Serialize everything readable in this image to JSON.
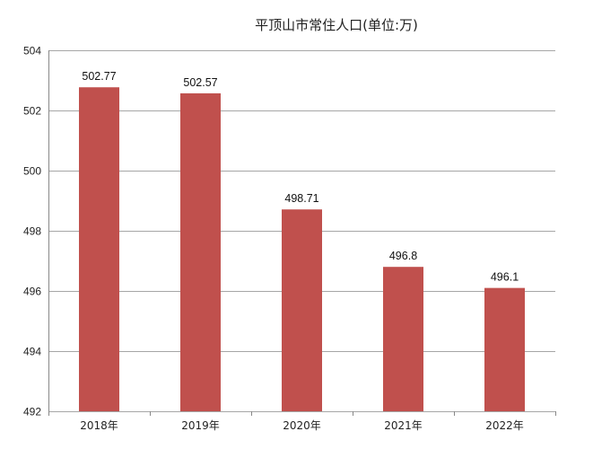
{
  "chart_data": {
    "type": "bar",
    "title": "平顶山市常住人口(单位:万)",
    "categories": [
      "2018年",
      "2019年",
      "2020年",
      "2021年",
      "2022年"
    ],
    "values": [
      502.77,
      502.57,
      498.71,
      496.8,
      496.1
    ],
    "data_labels": [
      "502.77",
      "502.57",
      "498.71",
      "496.8",
      "496.1"
    ],
    "ylim": [
      492,
      504
    ],
    "yticks": [
      492,
      494,
      496,
      498,
      500,
      502,
      504
    ],
    "xlabel": "",
    "ylabel": "",
    "grid": true,
    "legend": "none",
    "bar_color": "#c0504d"
  }
}
